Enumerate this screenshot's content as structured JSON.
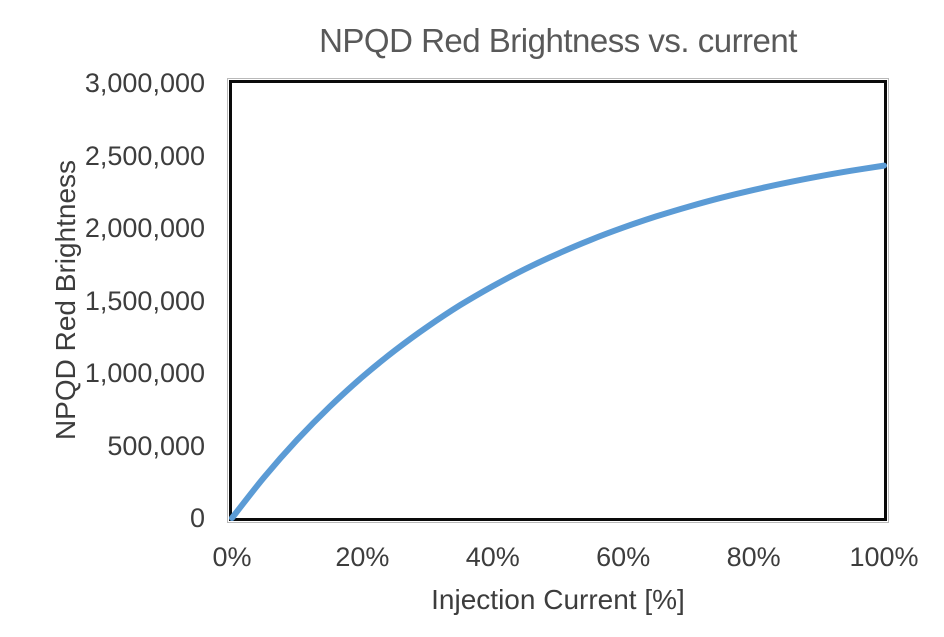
{
  "chart": {
    "title": "NPQD Red Brightness vs. current",
    "y_axis_title": "NPQD Red Brightness",
    "x_axis_title": "Injection Current [%]",
    "colors": {
      "line": "#5B9BD5",
      "title_text": "#595959",
      "tick_text": "#3d3d3d",
      "axis_title_text": "#3d3d3d",
      "plot_border": "#0a0a0a",
      "background": "#ffffff"
    }
  },
  "chart_data": {
    "type": "line",
    "title": "NPQD Red Brightness vs. current",
    "xlabel": "Injection Current [%]",
    "ylabel": "NPQD Red Brightness",
    "xlim": [
      0,
      100
    ],
    "ylim": [
      0,
      3000000
    ],
    "grid": false,
    "legend": false,
    "x_tick_values": [
      0,
      20,
      40,
      60,
      80,
      100
    ],
    "x_tick_labels": [
      "0%",
      "20%",
      "40%",
      "60%",
      "80%",
      "100%"
    ],
    "y_tick_values": [
      0,
      500000,
      1000000,
      1500000,
      2000000,
      2500000,
      3000000
    ],
    "y_tick_labels": [
      "0",
      "500,000",
      "1,000,000",
      "1,500,000",
      "2,000,000",
      "2,500,000",
      "3,000,000"
    ],
    "series": [
      {
        "name": "NPQD Red Brightness",
        "color": "#5B9BD5",
        "x": [
          0,
          5,
          10,
          15,
          20,
          25,
          30,
          35,
          40,
          45,
          50,
          55,
          60,
          65,
          70,
          75,
          80,
          85,
          90,
          95,
          100
        ],
        "y": [
          0,
          285000,
          540000,
          768000,
          973000,
          1156000,
          1320000,
          1468000,
          1599000,
          1718000,
          1823000,
          1918000,
          2003000,
          2079000,
          2147000,
          2208000,
          2263000,
          2312000,
          2356000,
          2395000,
          2430000
        ]
      }
    ]
  }
}
